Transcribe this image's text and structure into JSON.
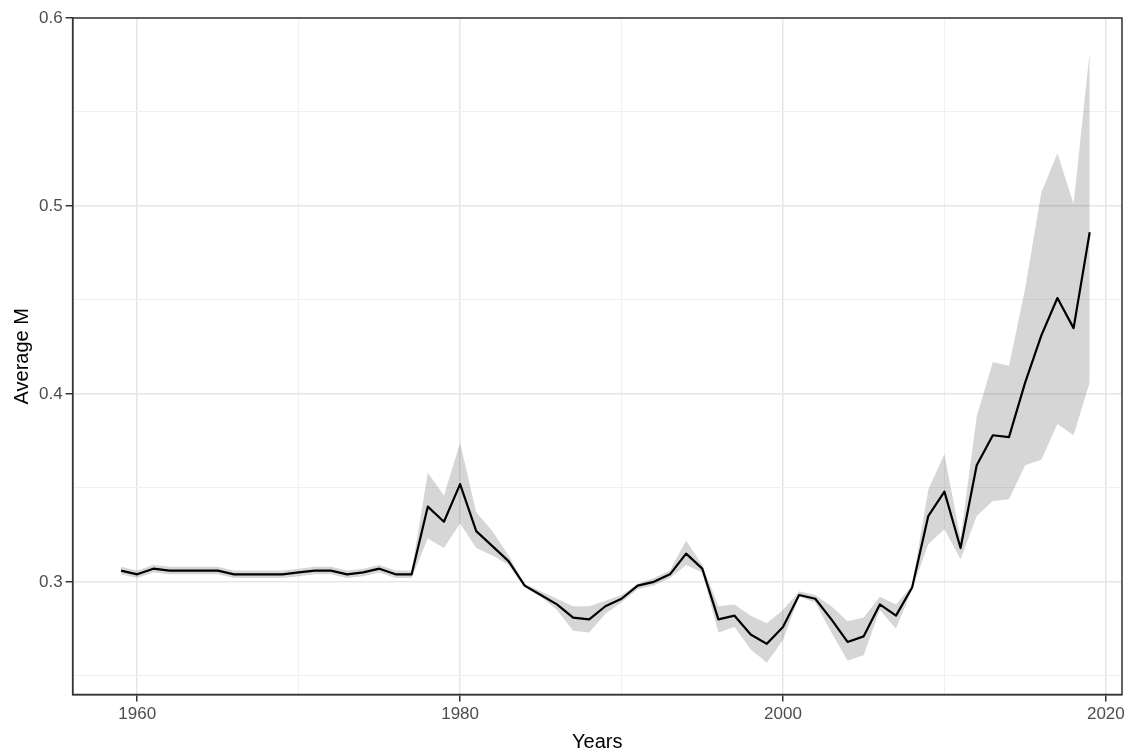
{
  "chart_data": {
    "type": "line",
    "xlabel": "Years",
    "ylabel": "Average M",
    "xlim": [
      1956,
      2021
    ],
    "xticks": [
      1960,
      {
        "value": 1970,
        "label": null
      },
      1980,
      {
        "value": 1990,
        "label": null
      },
      2000,
      {
        "value": 2010,
        "label": null
      },
      2020
    ],
    "ylim": [
      0.24,
      0.6
    ],
    "yticks": [
      {
        "value": 0.25,
        "label": null
      },
      0.3,
      {
        "value": 0.35,
        "label": null
      },
      0.4,
      {
        "value": 0.45,
        "label": null
      },
      0.5,
      {
        "value": 0.55,
        "label": null
      },
      0.6
    ],
    "grid": true,
    "legend": false,
    "marker": "none",
    "line_style": "solid",
    "x": [
      1959,
      1960,
      1961,
      1962,
      1963,
      1964,
      1965,
      1966,
      1967,
      1968,
      1969,
      1970,
      1971,
      1972,
      1973,
      1974,
      1975,
      1976,
      1977,
      1978,
      1979,
      1980,
      1981,
      1982,
      1983,
      1984,
      1985,
      1986,
      1987,
      1988,
      1989,
      1990,
      1991,
      1992,
      1993,
      1994,
      1995,
      1996,
      1997,
      1998,
      1999,
      2000,
      2001,
      2002,
      2003,
      2004,
      2005,
      2006,
      2007,
      2008,
      2009,
      2010,
      2011,
      2012,
      2013,
      2014,
      2015,
      2016,
      2017,
      2018,
      2019
    ],
    "series": [
      {
        "color": "#000000",
        "values": [
          0.306,
          0.304,
          0.307,
          0.306,
          0.306,
          0.306,
          0.306,
          0.304,
          0.304,
          0.304,
          0.304,
          0.305,
          0.306,
          0.306,
          0.304,
          0.305,
          0.307,
          0.304,
          0.304,
          0.34,
          0.332,
          0.352,
          0.327,
          0.319,
          0.311,
          0.298,
          0.293,
          0.288,
          0.281,
          0.28,
          0.287,
          0.291,
          0.298,
          0.3,
          0.304,
          0.315,
          0.307,
          0.28,
          0.282,
          0.272,
          0.267,
          0.276,
          0.293,
          0.291,
          0.28,
          0.268,
          0.271,
          0.288,
          0.282,
          0.297,
          0.335,
          0.348,
          0.318,
          0.362,
          0.378,
          0.377,
          0.406,
          0.431,
          0.451,
          0.435,
          0.486
        ],
        "lower": [
          0.304,
          0.302,
          0.305,
          0.304,
          0.304,
          0.304,
          0.304,
          0.302,
          0.302,
          0.302,
          0.302,
          0.303,
          0.304,
          0.304,
          0.302,
          0.303,
          0.305,
          0.302,
          0.302,
          0.323,
          0.318,
          0.331,
          0.318,
          0.314,
          0.309,
          0.297,
          0.292,
          0.285,
          0.274,
          0.273,
          0.283,
          0.289,
          0.296,
          0.298,
          0.302,
          0.309,
          0.305,
          0.273,
          0.276,
          0.264,
          0.257,
          0.269,
          0.292,
          0.289,
          0.273,
          0.258,
          0.261,
          0.285,
          0.275,
          0.296,
          0.32,
          0.328,
          0.312,
          0.335,
          0.343,
          0.344,
          0.362,
          0.365,
          0.384,
          0.378,
          0.406
        ],
        "upper": [
          0.308,
          0.306,
          0.309,
          0.308,
          0.308,
          0.308,
          0.308,
          0.306,
          0.306,
          0.306,
          0.306,
          0.307,
          0.308,
          0.308,
          0.306,
          0.307,
          0.309,
          0.306,
          0.306,
          0.358,
          0.346,
          0.374,
          0.337,
          0.327,
          0.314,
          0.299,
          0.295,
          0.291,
          0.287,
          0.287,
          0.29,
          0.293,
          0.299,
          0.302,
          0.306,
          0.322,
          0.309,
          0.287,
          0.288,
          0.282,
          0.278,
          0.285,
          0.295,
          0.293,
          0.287,
          0.279,
          0.281,
          0.292,
          0.288,
          0.298,
          0.349,
          0.368,
          0.323,
          0.388,
          0.417,
          0.415,
          0.456,
          0.507,
          0.528,
          0.501,
          0.582
        ]
      }
    ]
  }
}
